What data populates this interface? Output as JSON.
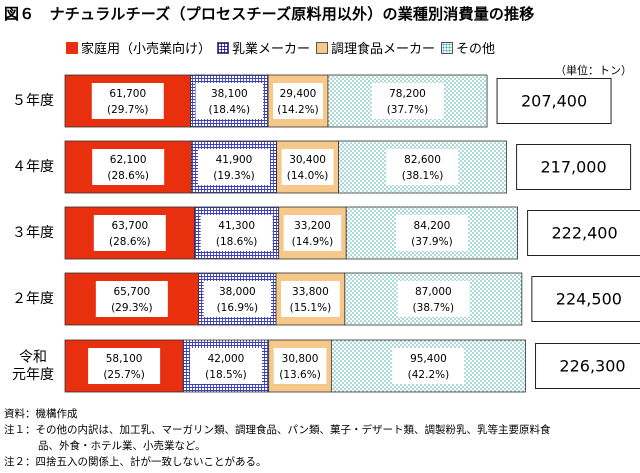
{
  "title": "図６　ナチュラルチーズ（プロセスチーズ原料用以外）の業種別消費量の推移",
  "unit": "（単位：トン）",
  "colors": {
    "household": "#e8300f",
    "dairy": "#3b3fb8",
    "cooking": "#f6c98a",
    "other": "#3aa6a6"
  },
  "chart_data": {
    "type": "bar",
    "orientation": "horizontal",
    "stacked": true,
    "categories": [
      "５年度",
      "４年度",
      "３年度",
      "２年度",
      "令和元年度"
    ],
    "series": [
      {
        "name": "家庭用（小売業向け）",
        "values": [
          61700,
          62100,
          63700,
          65700,
          58100
        ],
        "shares": [
          "(29.7%)",
          "(28.6%)",
          "(28.6%)",
          "(29.3%)",
          "(25.7%)"
        ]
      },
      {
        "name": "乳業メーカー",
        "values": [
          38100,
          41900,
          41300,
          38000,
          42000
        ],
        "shares": [
          "(18.4%)",
          "(19.3%)",
          "(18.6%)",
          "(16.9%)",
          "(18.5%)"
        ]
      },
      {
        "name": "調理食品メーカー",
        "values": [
          29400,
          30400,
          33200,
          33800,
          30800
        ],
        "shares": [
          "(14.2%)",
          "(14.0%)",
          "(14.9%)",
          "(15.1%)",
          "(13.6%)"
        ]
      },
      {
        "name": "その他",
        "values": [
          78200,
          82600,
          84200,
          87000,
          95400
        ],
        "shares": [
          "(37.7%)",
          "(38.1%)",
          "(37.9%)",
          "(38.7%)",
          "(42.2%)"
        ]
      }
    ],
    "value_labels": [
      [
        "61,700",
        "38,100",
        "29,400",
        "78,200"
      ],
      [
        "62,100",
        "41,900",
        "30,400",
        "82,600"
      ],
      [
        "63,700",
        "41,300",
        "33,200",
        "84,200"
      ],
      [
        "65,700",
        "38,000",
        "33,800",
        "87,000"
      ],
      [
        "58,100",
        "42,000",
        "30,800",
        "95,400"
      ]
    ],
    "totals": [
      207400,
      217000,
      222400,
      224500,
      226300
    ],
    "total_labels": [
      "207,400",
      "217,000",
      "222,400",
      "224,500",
      "226,300"
    ],
    "legend_position": "top",
    "grid": false
  },
  "notes": [
    {
      "label": "資料：",
      "text": "機構作成",
      "cont": ""
    },
    {
      "label": "注１：",
      "text": "その他の内訳は、加工乳、マーガリン類、調理食品、パン類、菓子・デザート類、調製粉乳、乳等主要原料食",
      "cont": "品、外食・ホテル業、小売業など。"
    },
    {
      "label": "注２：",
      "text": "四捨五入の関係上、計が一致しないことがある。",
      "cont": ""
    }
  ]
}
